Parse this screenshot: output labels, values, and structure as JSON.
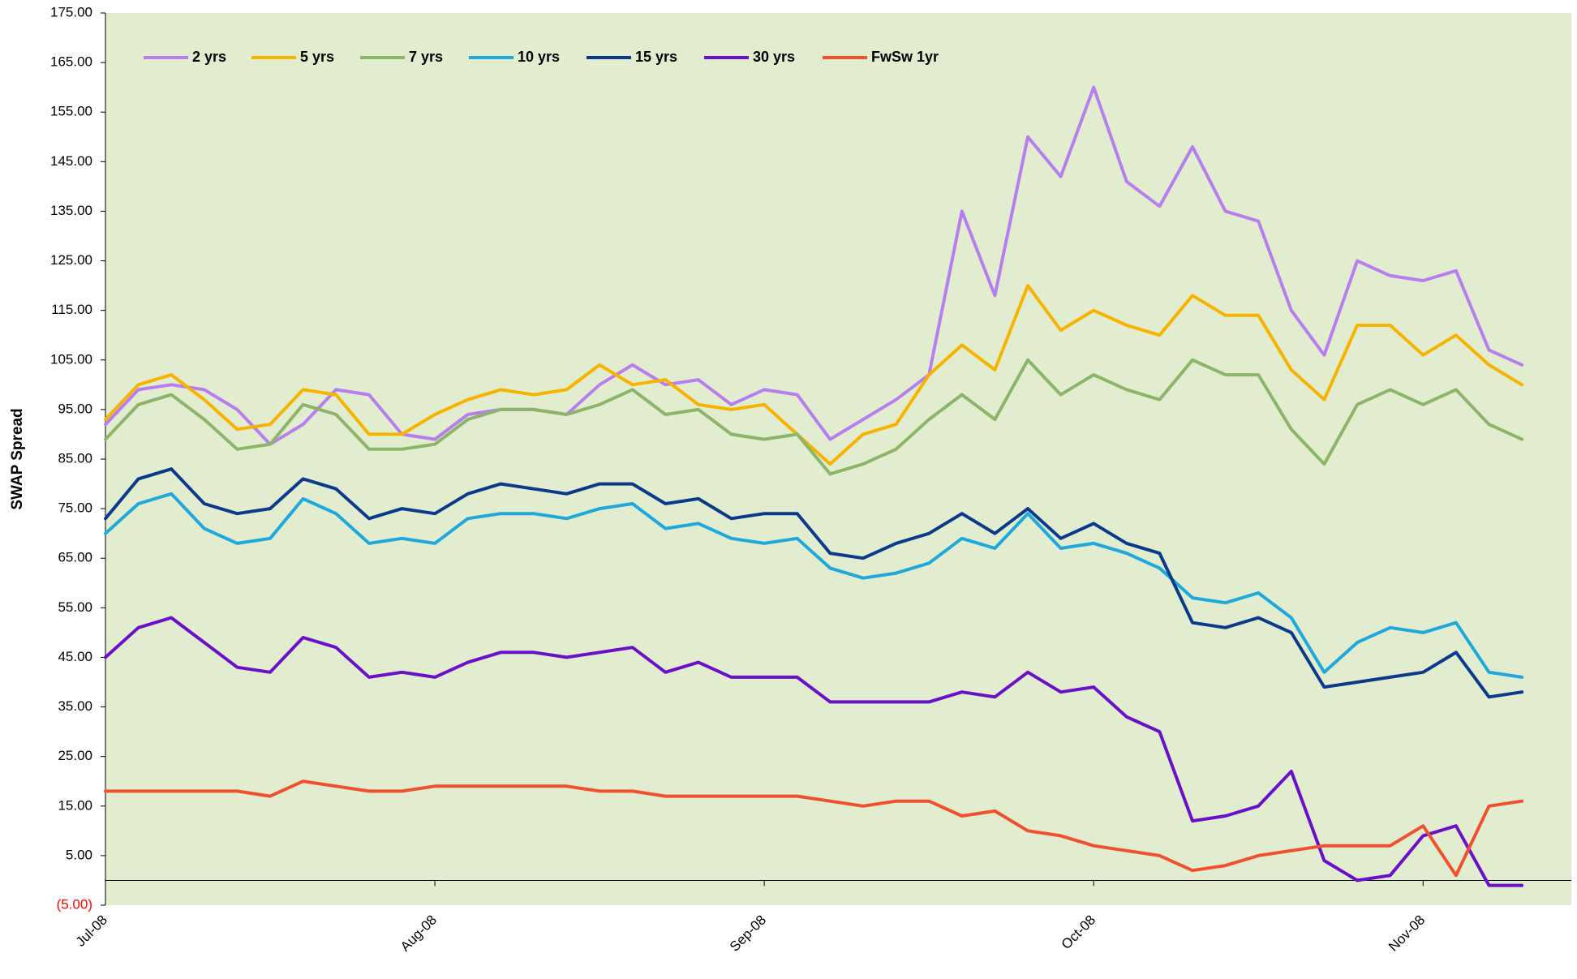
{
  "chart_data": {
    "type": "line",
    "y_label": "SWAP Spread",
    "categories": [
      "Jul-08",
      null,
      null,
      null,
      null,
      null,
      null,
      null,
      null,
      null,
      "Aug-08",
      null,
      null,
      null,
      null,
      null,
      null,
      null,
      null,
      null,
      "Sep-08",
      null,
      null,
      null,
      null,
      null,
      null,
      null,
      null,
      null,
      "Oct-08",
      null,
      null,
      null,
      null,
      null,
      null,
      null,
      null,
      null,
      "Nov-08",
      null,
      null,
      null
    ],
    "ylim": [
      -5,
      175
    ],
    "yticks": [
      {
        "value": -5,
        "label": "(5.00)",
        "color": "#ff0000"
      },
      {
        "value": 5,
        "label": "5.00"
      },
      {
        "value": 15,
        "label": "15.00"
      },
      {
        "value": 25,
        "label": "25.00"
      },
      {
        "value": 35,
        "label": "35.00"
      },
      {
        "value": 45,
        "label": "45.00"
      },
      {
        "value": 55,
        "label": "55.00"
      },
      {
        "value": 65,
        "label": "65.00"
      },
      {
        "value": 75,
        "label": "75.00"
      },
      {
        "value": 85,
        "label": "85.00"
      },
      {
        "value": 95,
        "label": "95.00"
      },
      {
        "value": 105,
        "label": "105.00"
      },
      {
        "value": 115,
        "label": "115.00"
      },
      {
        "value": 125,
        "label": "125.00"
      },
      {
        "value": 135,
        "label": "135.00"
      },
      {
        "value": 145,
        "label": "145.00"
      },
      {
        "value": 155,
        "label": "155.00"
      },
      {
        "value": 165,
        "label": "165.00"
      },
      {
        "value": 175,
        "label": "175.00"
      }
    ],
    "legend": "top-left",
    "series": [
      {
        "name": "2 yrs",
        "color": "#b77ef0",
        "values": [
          92,
          99,
          100,
          99,
          95,
          88,
          92,
          99,
          98,
          90,
          89,
          94,
          95,
          95,
          94,
          100,
          104,
          100,
          101,
          96,
          99,
          98,
          89,
          93,
          97,
          102,
          135,
          118,
          150,
          142,
          160,
          141,
          136,
          148,
          135,
          133,
          115,
          106,
          125,
          122,
          121,
          123,
          107,
          104
        ]
      },
      {
        "name": "5 yrs",
        "color": "#f6b400",
        "values": [
          93,
          100,
          102,
          97,
          91,
          92,
          99,
          98,
          90,
          90,
          94,
          97,
          99,
          98,
          99,
          104,
          100,
          101,
          96,
          95,
          96,
          90,
          84,
          90,
          92,
          102,
          108,
          103,
          120,
          111,
          115,
          112,
          110,
          118,
          114,
          114,
          103,
          97,
          112,
          112,
          106,
          110,
          104,
          100
        ]
      },
      {
        "name": "7 yrs",
        "color": "#8cb56a",
        "values": [
          89,
          96,
          98,
          93,
          87,
          88,
          96,
          94,
          87,
          87,
          88,
          93,
          95,
          95,
          94,
          96,
          99,
          94,
          95,
          90,
          89,
          90,
          82,
          84,
          87,
          93,
          98,
          93,
          105,
          98,
          102,
          99,
          97,
          105,
          102,
          102,
          91,
          84,
          96,
          99,
          96,
          99,
          92,
          89
        ]
      },
      {
        "name": "10 yrs",
        "color": "#1ea8dc",
        "values": [
          70,
          76,
          78,
          71,
          68,
          69,
          77,
          74,
          68,
          69,
          68,
          73,
          74,
          74,
          73,
          75,
          76,
          71,
          72,
          69,
          68,
          69,
          63,
          61,
          62,
          64,
          69,
          67,
          74,
          67,
          68,
          66,
          63,
          57,
          56,
          58,
          53,
          42,
          48,
          51,
          50,
          52,
          42,
          41
        ]
      },
      {
        "name": "15 yrs",
        "color": "#0b3a8c",
        "values": [
          73,
          81,
          83,
          76,
          74,
          75,
          81,
          79,
          73,
          75,
          74,
          78,
          80,
          79,
          78,
          80,
          80,
          76,
          77,
          73,
          74,
          74,
          66,
          65,
          68,
          70,
          74,
          70,
          75,
          69,
          72,
          68,
          66,
          52,
          51,
          53,
          50,
          39,
          40,
          41,
          42,
          46,
          37,
          38
        ]
      },
      {
        "name": "30 yrs",
        "color": "#6a10c8",
        "values": [
          45,
          51,
          53,
          48,
          43,
          42,
          49,
          47,
          41,
          42,
          41,
          44,
          46,
          46,
          45,
          46,
          47,
          42,
          44,
          41,
          41,
          41,
          36,
          36,
          36,
          36,
          38,
          37,
          42,
          38,
          39,
          33,
          30,
          12,
          13,
          15,
          22,
          4,
          0,
          1,
          9,
          11,
          -1,
          -1
        ]
      },
      {
        "name": "FwSw 1yr",
        "color": "#f0502e",
        "values": [
          18,
          18,
          18,
          18,
          18,
          17,
          20,
          19,
          18,
          18,
          19,
          19,
          19,
          19,
          19,
          18,
          18,
          17,
          17,
          17,
          17,
          17,
          16,
          15,
          16,
          16,
          13,
          14,
          10,
          9,
          7,
          6,
          5,
          2,
          3,
          5,
          6,
          7,
          7,
          7,
          11,
          1,
          15,
          16
        ]
      }
    ]
  }
}
